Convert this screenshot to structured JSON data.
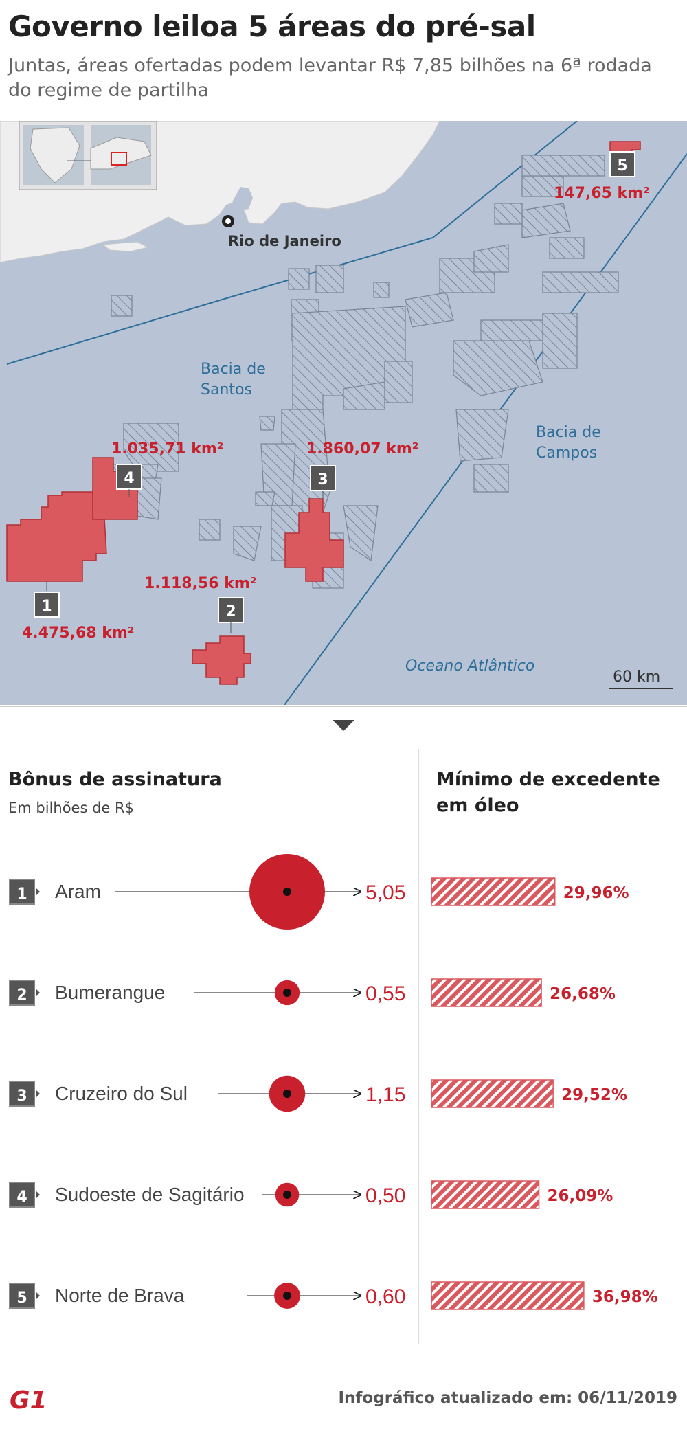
{
  "header": {
    "title": "Governo leiloa 5 áreas do pré-sal",
    "subtitle": "Juntas, áreas ofertadas podem levantar R$ 7,85 bilhões na 6ª rodada do regime de partilha"
  },
  "map": {
    "city_label": "Rio de Janeiro",
    "basin_santos": [
      "Bacia de",
      "Santos"
    ],
    "basin_campos": [
      "Bacia de",
      "Campos"
    ],
    "ocean_label": "Oceano Atlântico",
    "scale_label": "60 km",
    "areas": [
      {
        "number": "1",
        "area": "4.475,68 km²"
      },
      {
        "number": "2",
        "area": "1.118,56 km²"
      },
      {
        "number": "3",
        "area": "1.860,07 km²"
      },
      {
        "number": "4",
        "area": "1.035,71 km²"
      },
      {
        "number": "5",
        "area": "147,65 km²"
      }
    ],
    "colors": {
      "land": "#efefef",
      "sea": "#b8c4d5",
      "area": "#d9595e",
      "label": "#c8202c",
      "basin_line": "#2e6e99"
    }
  },
  "sections": {
    "bonus_title": "Bônus de assinatura",
    "bonus_unit": "Em bilhões de R$",
    "oil_title_line1": "Mínimo de excedente",
    "oil_title_line2": "em óleo"
  },
  "chart_data": {
    "type": "bar",
    "categories": [
      "Aram",
      "Bumerangue",
      "Cruzeiro do Sul",
      "Sudoeste de Sagitário",
      "Norte de Brava"
    ],
    "numbers": [
      "1",
      "2",
      "3",
      "4",
      "5"
    ],
    "bonus_values": [
      5.05,
      0.55,
      1.15,
      0.5,
      0.6
    ],
    "bonus_labels": [
      "5,05",
      "0,55",
      "1,15",
      "0,50",
      "0,60"
    ],
    "oil_values": [
      29.96,
      26.68,
      29.52,
      26.09,
      36.98
    ],
    "oil_labels": [
      "29,96%",
      "26,68%",
      "29,52%",
      "26,09%",
      "36,98%"
    ],
    "colors": {
      "accent": "#c8202c",
      "hatch": "#d9595e"
    }
  },
  "footer": {
    "logo_text": "G1",
    "updated": "Infográfico atualizado em: 06/11/2019"
  }
}
